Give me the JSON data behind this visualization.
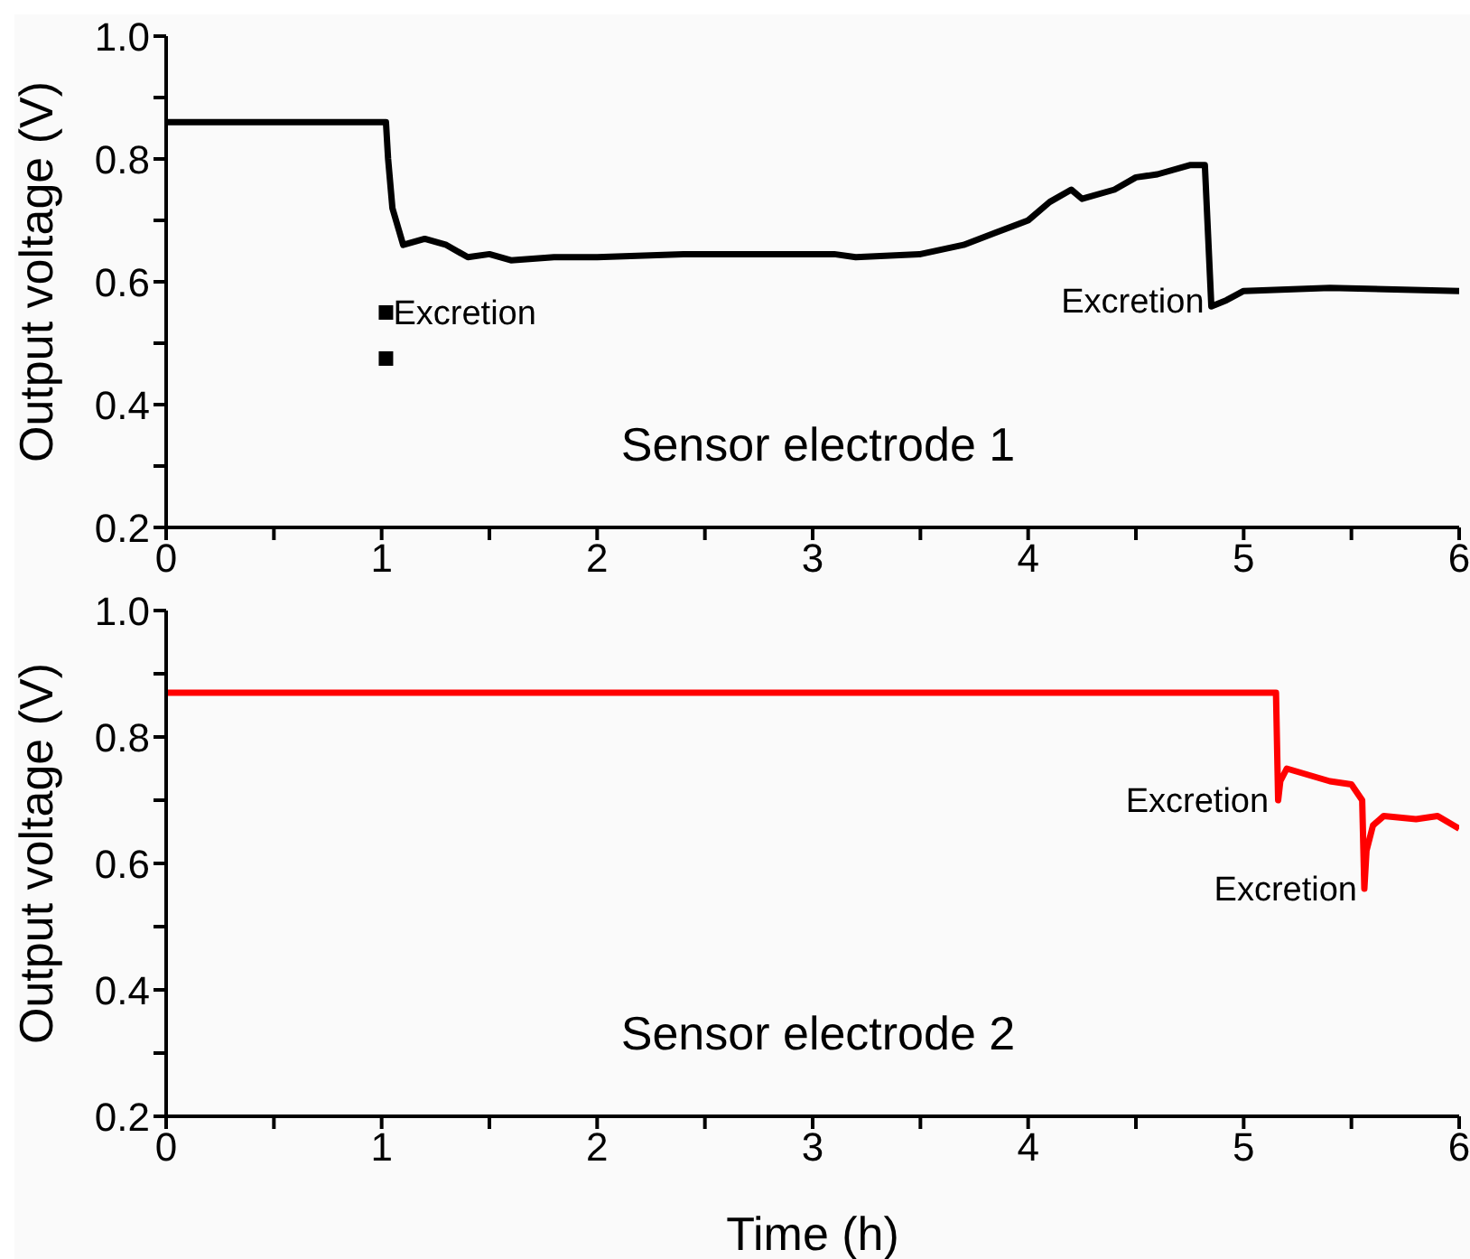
{
  "chart_data": [
    {
      "type": "line",
      "ylabel": "Output voltage (V)",
      "xlim": [
        0,
        6
      ],
      "ylim": [
        0.2,
        1.0
      ],
      "xticks": [
        0,
        {
          "value": 0.5,
          "label": null
        },
        1,
        {
          "value": 1.5,
          "label": null
        },
        2,
        {
          "value": 2.5,
          "label": null
        },
        3,
        {
          "value": 3.5,
          "label": null
        },
        4,
        {
          "value": 4.5,
          "label": null
        },
        5,
        {
          "value": 5.5,
          "label": null
        },
        6
      ],
      "yticks": [
        {
          "value": 0.2,
          "label": "0.2"
        },
        {
          "value": 0.3,
          "label": null
        },
        {
          "value": 0.4,
          "label": "0.4"
        },
        {
          "value": 0.5,
          "label": null
        },
        {
          "value": 0.6,
          "label": "0.6"
        },
        {
          "value": 0.7,
          "label": null
        },
        {
          "value": 0.8,
          "label": "0.8"
        },
        {
          "value": 0.9,
          "label": null
        },
        {
          "value": 1.0,
          "label": "1.0"
        }
      ],
      "grid": false,
      "legend": false,
      "line_style": "solid",
      "annotations": [
        {
          "text": "Excretion",
          "x": 1.02,
          "y": 0.55
        },
        {
          "text": "Excretion",
          "x": 4.85,
          "y": 0.57
        },
        "Sensor electrode 1"
      ],
      "series": [
        {
          "color": "#000000",
          "x": [
            0,
            0.5,
            1.0,
            1.02,
            1.03,
            1.05,
            1.1,
            1.2,
            1.3,
            1.4,
            1.5,
            1.6,
            1.8,
            2.0,
            2.4,
            2.8,
            3.1,
            3.2,
            3.5,
            3.7,
            3.85,
            4.0,
            4.1,
            4.2,
            4.25,
            4.4,
            4.5,
            4.6,
            4.75,
            4.82,
            4.85,
            4.92,
            5.0,
            5.4,
            6.0
          ],
          "values": [
            0.86,
            0.86,
            0.86,
            0.86,
            0.8,
            0.72,
            0.66,
            0.67,
            0.66,
            0.64,
            0.645,
            0.635,
            0.64,
            0.64,
            0.645,
            0.645,
            0.645,
            0.64,
            0.645,
            0.66,
            0.68,
            0.7,
            0.73,
            0.75,
            0.735,
            0.75,
            0.77,
            0.775,
            0.79,
            0.79,
            0.56,
            0.57,
            0.585,
            0.59,
            0.585
          ]
        },
        {
          "type": "scatter",
          "marker": "square",
          "color": "#000000",
          "x": [
            1.02,
            1.02
          ],
          "values": [
            0.55,
            0.475
          ]
        }
      ]
    },
    {
      "type": "line",
      "xlabel": "Time (h)",
      "ylabel": "Output voltage (V)",
      "xlim": [
        0,
        6
      ],
      "ylim": [
        0.2,
        1.0
      ],
      "xticks": [
        0,
        {
          "value": 0.5,
          "label": null
        },
        1,
        {
          "value": 1.5,
          "label": null
        },
        2,
        {
          "value": 2.5,
          "label": null
        },
        3,
        {
          "value": 3.5,
          "label": null
        },
        4,
        {
          "value": 4.5,
          "label": null
        },
        5,
        {
          "value": 5.5,
          "label": null
        },
        6
      ],
      "yticks": [
        {
          "value": 0.2,
          "label": "0.2"
        },
        {
          "value": 0.3,
          "label": null
        },
        {
          "value": 0.4,
          "label": "0.4"
        },
        {
          "value": 0.5,
          "label": null
        },
        {
          "value": 0.6,
          "label": "0.6"
        },
        {
          "value": 0.7,
          "label": null
        },
        {
          "value": 0.8,
          "label": "0.8"
        },
        {
          "value": 0.9,
          "label": null
        },
        {
          "value": 1.0,
          "label": "1.0"
        }
      ],
      "grid": false,
      "legend": false,
      "line_style": "solid",
      "annotations": [
        {
          "text": "Excretion",
          "x": 5.15,
          "y": 0.7
        },
        {
          "text": "Excretion",
          "x": 5.56,
          "y": 0.56
        },
        "Sensor electrode 2"
      ],
      "series": [
        {
          "color": "#ff0000",
          "x": [
            0,
            1,
            2,
            3,
            4,
            5,
            5.15,
            5.16,
            5.17,
            5.2,
            5.3,
            5.4,
            5.5,
            5.55,
            5.56,
            5.57,
            5.6,
            5.65,
            5.8,
            5.9,
            6.0
          ],
          "values": [
            0.87,
            0.87,
            0.87,
            0.87,
            0.87,
            0.87,
            0.87,
            0.7,
            0.73,
            0.75,
            0.74,
            0.73,
            0.725,
            0.7,
            0.56,
            0.62,
            0.66,
            0.675,
            0.67,
            0.675,
            0.655
          ]
        }
      ]
    }
  ]
}
